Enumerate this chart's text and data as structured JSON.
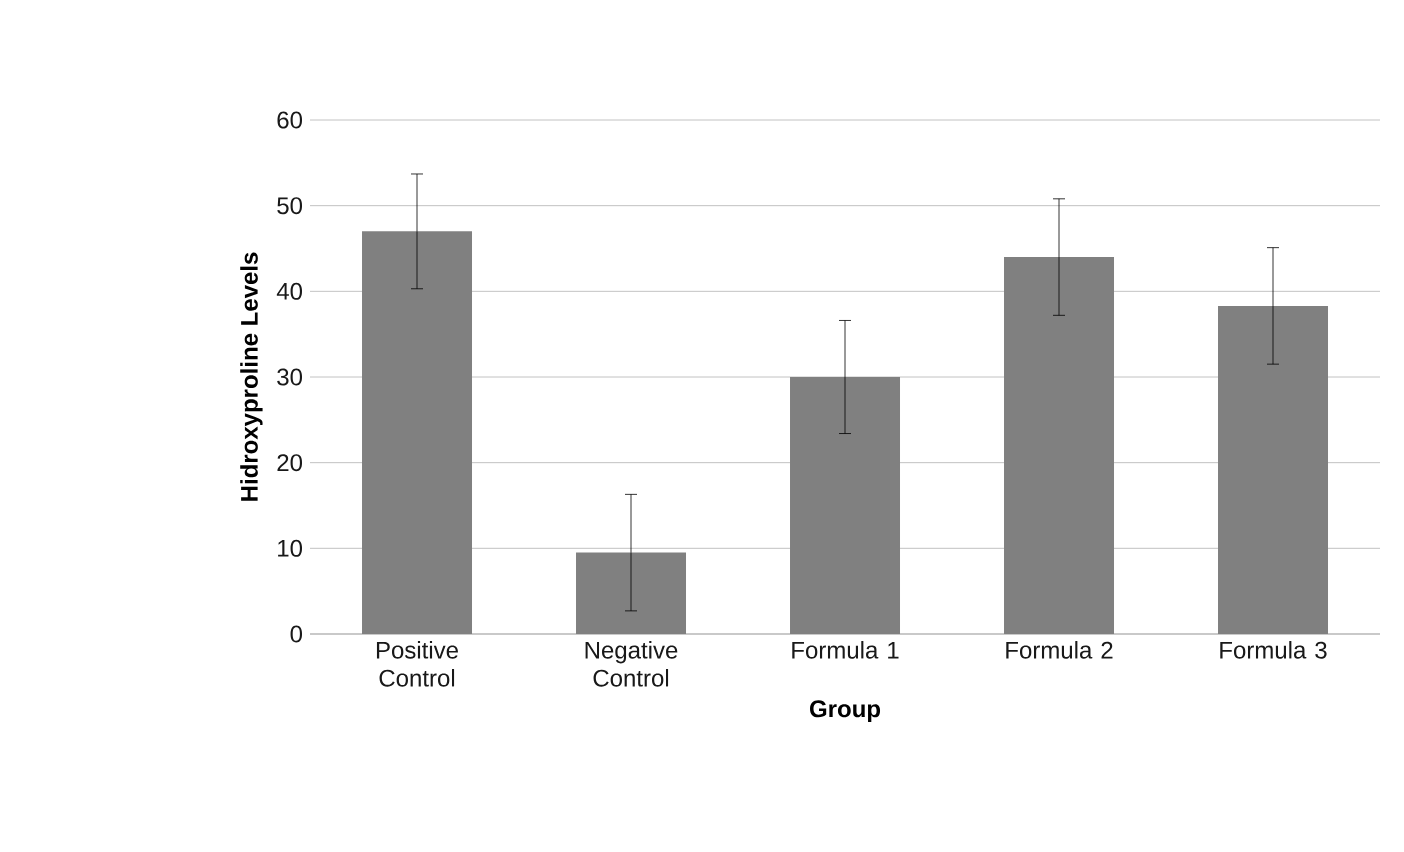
{
  "chart_data": {
    "type": "bar",
    "xlabel": "Group",
    "ylabel": "Hidroxyproline Levels",
    "categories": [
      "Positive Control",
      "Negative Control",
      "Formula 1",
      "Formula 2",
      "Formula 3"
    ],
    "values": [
      47,
      9.5,
      30,
      44,
      38.3
    ],
    "errors": [
      6.7,
      6.8,
      6.6,
      6.8,
      6.8
    ],
    "color": "#808080",
    "ylim": [
      0,
      60
    ],
    "yticks": [
      0,
      10,
      20,
      30,
      40,
      50,
      60
    ],
    "grid": "y"
  }
}
